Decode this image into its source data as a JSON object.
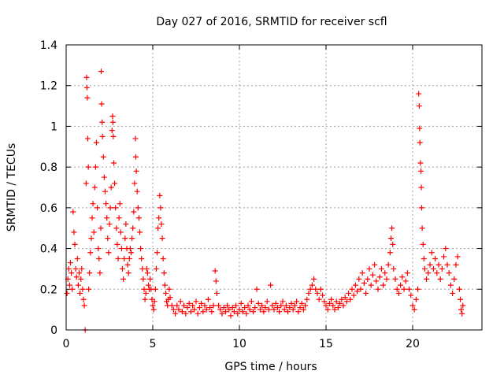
{
  "chart_data": {
    "type": "scatter",
    "title": "Day 027 of 2016, SRMTID for receiver scfl",
    "xlabel": "GPS time / hours",
    "ylabel": "SRMTID / TECUs",
    "xlim": [
      0,
      24
    ],
    "ylim": [
      0,
      1.4
    ],
    "xticks": [
      0,
      5,
      10,
      15,
      20
    ],
    "xtick_labels": [
      "0",
      "5",
      "10",
      "15",
      "20"
    ],
    "yticks": [
      0,
      0.2,
      0.4,
      0.6,
      0.8,
      1.0,
      1.2,
      1.4
    ],
    "ytick_labels": [
      "0",
      "0.2",
      "0.4",
      "0.6",
      "0.8",
      "1",
      "1.2",
      "1.4"
    ],
    "grid": true,
    "marker": "+",
    "color": "#ff0000",
    "series": [
      {
        "name": "SRMTID",
        "points": [
          [
            0.05,
            0.18
          ],
          [
            0.1,
            0.25
          ],
          [
            0.15,
            0.3
          ],
          [
            0.2,
            0.22
          ],
          [
            0.25,
            0.33
          ],
          [
            0.3,
            0.28
          ],
          [
            0.35,
            0.2
          ],
          [
            0.4,
            0.58
          ],
          [
            0.45,
            0.48
          ],
          [
            0.5,
            0.42
          ],
          [
            0.55,
            0.3
          ],
          [
            0.6,
            0.26
          ],
          [
            0.65,
            0.35
          ],
          [
            0.7,
            0.22
          ],
          [
            0.75,
            0.28
          ],
          [
            0.8,
            0.18
          ],
          [
            0.85,
            0.25
          ],
          [
            0.9,
            0.3
          ],
          [
            0.95,
            0.2
          ],
          [
            1.0,
            0.15
          ],
          [
            1.05,
            0.12
          ],
          [
            1.1,
            0.0
          ],
          [
            1.15,
            0.72
          ],
          [
            1.18,
            1.24
          ],
          [
            1.2,
            1.19
          ],
          [
            1.22,
            1.14
          ],
          [
            1.25,
            0.94
          ],
          [
            1.28,
            0.8
          ],
          [
            1.3,
            0.2
          ],
          [
            1.35,
            0.28
          ],
          [
            1.4,
            0.38
          ],
          [
            1.45,
            0.45
          ],
          [
            1.5,
            0.55
          ],
          [
            1.55,
            0.62
          ],
          [
            1.6,
            0.48
          ],
          [
            1.65,
            0.7
          ],
          [
            1.7,
            0.8
          ],
          [
            1.75,
            0.92
          ],
          [
            1.8,
            0.6
          ],
          [
            1.85,
            0.4
          ],
          [
            1.9,
            0.35
          ],
          [
            1.95,
            0.28
          ],
          [
            2.0,
            0.5
          ],
          [
            2.02,
            1.27
          ],
          [
            2.05,
            1.11
          ],
          [
            2.08,
            1.02
          ],
          [
            2.1,
            0.95
          ],
          [
            2.15,
            0.85
          ],
          [
            2.2,
            0.75
          ],
          [
            2.25,
            0.68
          ],
          [
            2.3,
            0.62
          ],
          [
            2.35,
            0.55
          ],
          [
            2.4,
            0.45
          ],
          [
            2.45,
            0.38
          ],
          [
            2.5,
            0.52
          ],
          [
            2.55,
            0.6
          ],
          [
            2.6,
            0.7
          ],
          [
            2.65,
            0.98
          ],
          [
            2.68,
            1.05
          ],
          [
            2.7,
            1.02
          ],
          [
            2.72,
            0.95
          ],
          [
            2.75,
            0.82
          ],
          [
            2.8,
            0.72
          ],
          [
            2.85,
            0.6
          ],
          [
            2.9,
            0.5
          ],
          [
            2.95,
            0.42
          ],
          [
            3.0,
            0.35
          ],
          [
            3.05,
            0.55
          ],
          [
            3.1,
            0.62
          ],
          [
            3.15,
            0.48
          ],
          [
            3.2,
            0.4
          ],
          [
            3.25,
            0.3
          ],
          [
            3.3,
            0.25
          ],
          [
            3.35,
            0.35
          ],
          [
            3.4,
            0.45
          ],
          [
            3.45,
            0.52
          ],
          [
            3.5,
            0.4
          ],
          [
            3.55,
            0.32
          ],
          [
            3.6,
            0.28
          ],
          [
            3.65,
            0.35
          ],
          [
            3.7,
            0.4
          ],
          [
            3.75,
            0.38
          ],
          [
            3.8,
            0.45
          ],
          [
            3.85,
            0.5
          ],
          [
            3.9,
            0.58
          ],
          [
            3.95,
            0.72
          ],
          [
            4.0,
            0.94
          ],
          [
            4.02,
            0.85
          ],
          [
            4.05,
            0.78
          ],
          [
            4.1,
            0.68
          ],
          [
            4.15,
            0.6
          ],
          [
            4.2,
            0.55
          ],
          [
            4.25,
            0.48
          ],
          [
            4.3,
            0.4
          ],
          [
            4.35,
            0.35
          ],
          [
            4.4,
            0.3
          ],
          [
            4.45,
            0.25
          ],
          [
            4.5,
            0.2
          ],
          [
            4.55,
            0.15
          ],
          [
            4.6,
            0.18
          ],
          [
            4.65,
            0.3
          ],
          [
            4.7,
            0.28
          ],
          [
            4.75,
            0.22
          ],
          [
            4.8,
            0.2
          ],
          [
            4.85,
            0.25
          ],
          [
            4.9,
            0.2
          ],
          [
            4.95,
            0.15
          ],
          [
            5.0,
            0.12
          ],
          [
            5.05,
            0.1
          ],
          [
            5.1,
            0.14
          ],
          [
            5.15,
            0.2
          ],
          [
            5.2,
            0.3
          ],
          [
            5.25,
            0.38
          ],
          [
            5.3,
            0.5
          ],
          [
            5.35,
            0.55
          ],
          [
            5.4,
            0.66
          ],
          [
            5.45,
            0.6
          ],
          [
            5.5,
            0.52
          ],
          [
            5.55,
            0.45
          ],
          [
            5.6,
            0.35
          ],
          [
            5.65,
            0.28
          ],
          [
            5.7,
            0.22
          ],
          [
            5.75,
            0.18
          ],
          [
            5.8,
            0.14
          ],
          [
            5.85,
            0.12
          ],
          [
            5.9,
            0.15
          ],
          [
            5.95,
            0.2
          ],
          [
            6.0,
            0.16
          ],
          [
            6.1,
            0.12
          ],
          [
            6.2,
            0.1
          ],
          [
            6.3,
            0.08
          ],
          [
            6.4,
            0.12
          ],
          [
            6.5,
            0.1
          ],
          [
            6.6,
            0.14
          ],
          [
            6.7,
            0.09
          ],
          [
            6.8,
            0.12
          ],
          [
            6.9,
            0.08
          ],
          [
            7.0,
            0.11
          ],
          [
            7.1,
            0.13
          ],
          [
            7.2,
            0.09
          ],
          [
            7.3,
            0.12
          ],
          [
            7.4,
            0.1
          ],
          [
            7.5,
            0.14
          ],
          [
            7.6,
            0.08
          ],
          [
            7.7,
            0.11
          ],
          [
            7.8,
            0.13
          ],
          [
            7.9,
            0.09
          ],
          [
            8.0,
            0.12
          ],
          [
            8.1,
            0.1
          ],
          [
            8.2,
            0.15
          ],
          [
            8.3,
            0.11
          ],
          [
            8.4,
            0.09
          ],
          [
            8.5,
            0.12
          ],
          [
            8.6,
            0.29
          ],
          [
            8.65,
            0.24
          ],
          [
            8.7,
            0.18
          ],
          [
            8.8,
            0.12
          ],
          [
            8.9,
            0.1
          ],
          [
            9.0,
            0.08
          ],
          [
            9.1,
            0.11
          ],
          [
            9.2,
            0.09
          ],
          [
            9.3,
            0.12
          ],
          [
            9.4,
            0.1
          ],
          [
            9.5,
            0.07
          ],
          [
            9.6,
            0.11
          ],
          [
            9.7,
            0.09
          ],
          [
            9.8,
            0.12
          ],
          [
            9.9,
            0.08
          ],
          [
            10.0,
            0.1
          ],
          [
            10.1,
            0.13
          ],
          [
            10.2,
            0.09
          ],
          [
            10.3,
            0.11
          ],
          [
            10.4,
            0.08
          ],
          [
            10.5,
            0.12
          ],
          [
            10.6,
            0.1
          ],
          [
            10.7,
            0.14
          ],
          [
            10.8,
            0.09
          ],
          [
            10.9,
            0.11
          ],
          [
            11.0,
            0.2
          ],
          [
            11.1,
            0.13
          ],
          [
            11.2,
            0.1
          ],
          [
            11.3,
            0.12
          ],
          [
            11.4,
            0.09
          ],
          [
            11.5,
            0.11
          ],
          [
            11.6,
            0.14
          ],
          [
            11.7,
            0.1
          ],
          [
            11.8,
            0.22
          ],
          [
            11.9,
            0.12
          ],
          [
            12.0,
            0.1
          ],
          [
            12.1,
            0.13
          ],
          [
            12.2,
            0.11
          ],
          [
            12.3,
            0.09
          ],
          [
            12.4,
            0.12
          ],
          [
            12.5,
            0.14
          ],
          [
            12.6,
            0.1
          ],
          [
            12.7,
            0.12
          ],
          [
            12.8,
            0.09
          ],
          [
            12.9,
            0.11
          ],
          [
            13.0,
            0.13
          ],
          [
            13.1,
            0.1
          ],
          [
            13.2,
            0.12
          ],
          [
            13.3,
            0.14
          ],
          [
            13.4,
            0.09
          ],
          [
            13.5,
            0.11
          ],
          [
            13.6,
            0.13
          ],
          [
            13.7,
            0.1
          ],
          [
            13.8,
            0.12
          ],
          [
            13.9,
            0.15
          ],
          [
            14.0,
            0.18
          ],
          [
            14.1,
            0.2
          ],
          [
            14.2,
            0.22
          ],
          [
            14.3,
            0.25
          ],
          [
            14.4,
            0.2
          ],
          [
            14.5,
            0.18
          ],
          [
            14.6,
            0.15
          ],
          [
            14.7,
            0.2
          ],
          [
            14.8,
            0.17
          ],
          [
            14.9,
            0.14
          ],
          [
            15.0,
            0.12
          ],
          [
            15.1,
            0.1
          ],
          [
            15.2,
            0.13
          ],
          [
            15.3,
            0.15
          ],
          [
            15.4,
            0.12
          ],
          [
            15.5,
            0.1
          ],
          [
            15.6,
            0.14
          ],
          [
            15.7,
            0.11
          ],
          [
            15.8,
            0.13
          ],
          [
            15.9,
            0.15
          ],
          [
            16.0,
            0.12
          ],
          [
            16.1,
            0.16
          ],
          [
            16.2,
            0.14
          ],
          [
            16.3,
            0.18
          ],
          [
            16.4,
            0.15
          ],
          [
            16.5,
            0.2
          ],
          [
            16.6,
            0.17
          ],
          [
            16.7,
            0.22
          ],
          [
            16.8,
            0.19
          ],
          [
            16.9,
            0.25
          ],
          [
            17.0,
            0.2
          ],
          [
            17.1,
            0.28
          ],
          [
            17.2,
            0.23
          ],
          [
            17.3,
            0.18
          ],
          [
            17.4,
            0.25
          ],
          [
            17.5,
            0.3
          ],
          [
            17.6,
            0.22
          ],
          [
            17.7,
            0.27
          ],
          [
            17.8,
            0.32
          ],
          [
            17.9,
            0.24
          ],
          [
            18.0,
            0.2
          ],
          [
            18.1,
            0.26
          ],
          [
            18.2,
            0.3
          ],
          [
            18.3,
            0.22
          ],
          [
            18.4,
            0.28
          ],
          [
            18.5,
            0.25
          ],
          [
            18.6,
            0.32
          ],
          [
            18.7,
            0.38
          ],
          [
            18.75,
            0.45
          ],
          [
            18.8,
            0.5
          ],
          [
            18.85,
            0.42
          ],
          [
            18.9,
            0.3
          ],
          [
            19.0,
            0.25
          ],
          [
            19.1,
            0.2
          ],
          [
            19.2,
            0.18
          ],
          [
            19.3,
            0.22
          ],
          [
            19.4,
            0.26
          ],
          [
            19.5,
            0.2
          ],
          [
            19.6,
            0.24
          ],
          [
            19.7,
            0.28
          ],
          [
            19.8,
            0.2
          ],
          [
            19.9,
            0.17
          ],
          [
            20.0,
            0.12
          ],
          [
            20.1,
            0.1
          ],
          [
            20.2,
            0.15
          ],
          [
            20.3,
            0.2
          ],
          [
            20.35,
            1.16
          ],
          [
            20.38,
            1.1
          ],
          [
            20.4,
            0.99
          ],
          [
            20.42,
            0.92
          ],
          [
            20.45,
            0.82
          ],
          [
            20.48,
            0.78
          ],
          [
            20.5,
            0.7
          ],
          [
            20.52,
            0.6
          ],
          [
            20.55,
            0.5
          ],
          [
            20.6,
            0.42
          ],
          [
            20.65,
            0.35
          ],
          [
            20.7,
            0.3
          ],
          [
            20.8,
            0.25
          ],
          [
            20.9,
            0.28
          ],
          [
            21.0,
            0.32
          ],
          [
            21.1,
            0.38
          ],
          [
            21.2,
            0.3
          ],
          [
            21.3,
            0.35
          ],
          [
            21.4,
            0.28
          ],
          [
            21.5,
            0.32
          ],
          [
            21.6,
            0.25
          ],
          [
            21.7,
            0.3
          ],
          [
            21.8,
            0.36
          ],
          [
            21.9,
            0.4
          ],
          [
            22.0,
            0.32
          ],
          [
            22.1,
            0.28
          ],
          [
            22.2,
            0.22
          ],
          [
            22.3,
            0.18
          ],
          [
            22.4,
            0.25
          ],
          [
            22.5,
            0.32
          ],
          [
            22.6,
            0.36
          ],
          [
            22.7,
            0.2
          ],
          [
            22.75,
            0.15
          ],
          [
            22.8,
            0.1
          ],
          [
            22.85,
            0.08
          ],
          [
            22.9,
            0.12
          ]
        ]
      }
    ]
  }
}
